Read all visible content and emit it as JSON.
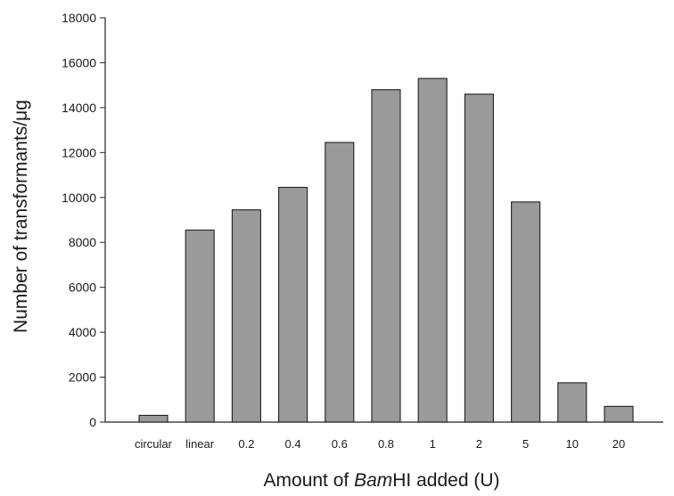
{
  "chart_data": {
    "type": "bar",
    "categories": [
      "circular",
      "linear",
      "0.2",
      "0.4",
      "0.6",
      "0.8",
      "1",
      "2",
      "5",
      "10",
      "20"
    ],
    "values": [
      300,
      8550,
      9450,
      10450,
      12450,
      14800,
      15300,
      14600,
      9800,
      1750,
      700
    ],
    "title": "",
    "xlabel": "Amount of BamHI added (U)",
    "xlabel_parts": {
      "prefix": "Amount of ",
      "italic": "Bam",
      "suffix": "HI added (U)"
    },
    "ylabel": "Number of transformants/μg",
    "ylim": [
      0,
      18000
    ],
    "yticks": [
      "0",
      "2000",
      "4000",
      "6000",
      "8000",
      "10000",
      "12000",
      "14000",
      "16000",
      "18000"
    ],
    "grid": false,
    "legend": "none",
    "colors": {
      "bar_fill": "#9a9a9a",
      "bar_stroke": "#1f1f1f",
      "axis": "#222222"
    }
  }
}
